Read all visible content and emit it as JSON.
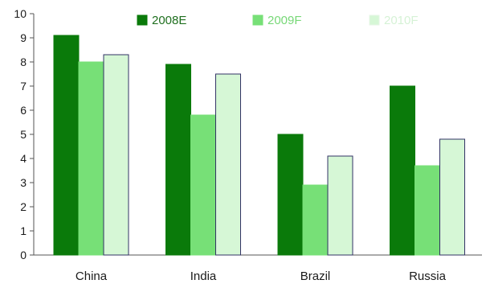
{
  "chart_data": {
    "type": "bar",
    "categories": [
      "China",
      "India",
      "Brazil",
      "Russia"
    ],
    "series": [
      {
        "name": "2008E",
        "values": [
          9.1,
          7.9,
          5.0,
          7.0
        ],
        "color": "#0a7a0a",
        "stroke": "#0a7a0a",
        "legend_text_color": "#1f6f1f"
      },
      {
        "name": "2009F",
        "values": [
          8.0,
          5.8,
          2.9,
          3.7
        ],
        "color": "#77e077",
        "stroke": "#77e077",
        "legend_text_color": "#77d877"
      },
      {
        "name": "2010F",
        "values": [
          8.3,
          7.5,
          4.1,
          4.8
        ],
        "color": "#d6f7d6",
        "stroke": "#333366",
        "legend_text_color": "#d6f2d6"
      }
    ],
    "yticks": [
      "0",
      "1",
      "2",
      "3",
      "4",
      "5",
      "6",
      "7",
      "8",
      "9",
      "10"
    ],
    "ylim": [
      0,
      10
    ],
    "grid": false,
    "legend_position": "top",
    "title": "",
    "xlabel": "",
    "ylabel": ""
  }
}
